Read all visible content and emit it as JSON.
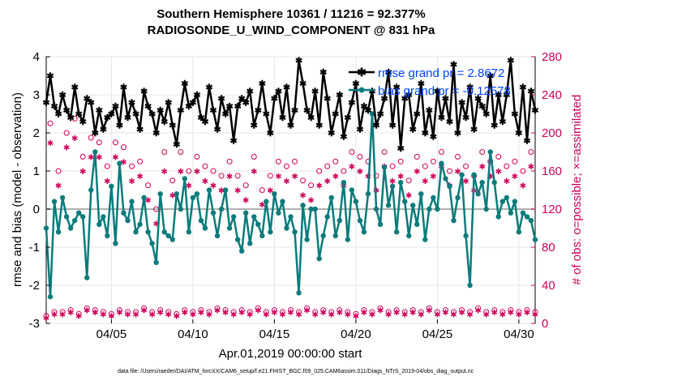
{
  "chart_data": {
    "type": "line",
    "title": "Southern Hemisphere 10361 / 11216 = 92.377%",
    "subtitle": "RADIOSONDE_U_WIND_COMPONENT @ 831 hPa",
    "xlabel": "Apr.01,2019 00:00:00 start",
    "ylabel_left": "rmse and bias (model - observation)",
    "ylabel_right": "# of obs: o=possible; ×=assimilated",
    "footer": "data file: /Users/raeder/DAI/ATM_forcXX/CAM6_setup/f.e21.FHIST_BGC.f09_025.CAM6assim.011/Diags_NTrS_2019-04/obs_diag_output.nc",
    "x_range_days": [
      1,
      31
    ],
    "xticks": [
      5,
      10,
      15,
      20,
      25,
      30
    ],
    "xtick_labels": [
      "04/05",
      "04/10",
      "04/15",
      "04/20",
      "04/25",
      "04/30"
    ],
    "ylim_left": [
      -3,
      4
    ],
    "yticks_left": [
      -3,
      -2,
      -1,
      0,
      1,
      2,
      3,
      4
    ],
    "ylim_right": [
      0,
      280
    ],
    "yticks_right": [
      0,
      40,
      80,
      120,
      160,
      200,
      240,
      280
    ],
    "legend_position": "top-right",
    "colors": {
      "rmse": "#000000",
      "bias": "#0b7b7b",
      "obs": "#d1005a",
      "legend_text": "#0044ff",
      "zero_line": "#b0b0b0",
      "grid": "#e6e6e6"
    },
    "series": [
      {
        "name": "rmse grand pr = 2.8672",
        "axis": "left",
        "style": "line-star",
        "x": [
          1,
          1.25,
          1.5,
          1.75,
          2,
          2.25,
          2.5,
          2.75,
          3,
          3.25,
          3.5,
          3.75,
          4,
          4.25,
          4.5,
          4.75,
          5,
          5.25,
          5.5,
          5.75,
          6,
          6.25,
          6.5,
          6.75,
          7,
          7.25,
          7.5,
          7.75,
          8,
          8.25,
          8.5,
          8.75,
          9,
          9.25,
          9.5,
          9.75,
          10,
          10.25,
          10.5,
          10.75,
          11,
          11.25,
          11.5,
          11.75,
          12,
          12.25,
          12.5,
          12.75,
          13,
          13.25,
          13.5,
          13.75,
          14,
          14.25,
          14.5,
          14.75,
          15,
          15.25,
          15.5,
          15.75,
          16,
          16.25,
          16.5,
          16.75,
          17,
          17.25,
          17.5,
          17.75,
          18,
          18.25,
          18.5,
          18.75,
          19,
          19.25,
          19.5,
          19.75,
          20,
          20.25,
          20.5,
          20.75,
          21,
          21.25,
          21.5,
          21.75,
          22,
          22.25,
          22.5,
          22.75,
          23,
          23.25,
          23.5,
          23.75,
          24,
          24.25,
          24.5,
          24.75,
          25,
          25.25,
          25.5,
          25.75,
          26,
          26.25,
          26.5,
          26.75,
          27,
          27.25,
          27.5,
          27.75,
          28,
          28.25,
          28.5,
          28.75,
          29,
          29.25,
          29.5,
          29.75,
          30,
          30.25,
          30.5,
          30.75,
          31
        ],
        "values": [
          2.8,
          3.5,
          2.7,
          2.5,
          3.0,
          2.6,
          2.4,
          3.2,
          2.5,
          2.3,
          2.9,
          2.8,
          2.0,
          2.6,
          2.1,
          2.4,
          2.5,
          2.7,
          2.2,
          3.2,
          2.4,
          2.8,
          2.5,
          2.1,
          3.1,
          2.7,
          2.5,
          2.0,
          2.6,
          2.3,
          2.8,
          2.2,
          1.7,
          2.6,
          3.3,
          2.7,
          2.8,
          3.0,
          2.4,
          2.3,
          3.2,
          2.6,
          2.1,
          2.9,
          2.5,
          2.7,
          1.8,
          2.7,
          2.9,
          2.8,
          3.1,
          2.2,
          2.6,
          3.3,
          2.5,
          2.0,
          2.9,
          3.1,
          2.4,
          3.2,
          2.2,
          2.6,
          3.9,
          3.3,
          2.6,
          2.4,
          3.1,
          2.2,
          3.6,
          2.9,
          2.0,
          2.5,
          3.0,
          1.9,
          2.4,
          2.8,
          3.3,
          2.1,
          2.7,
          2.6,
          3.1,
          2.2,
          2.5,
          2.9,
          3.6,
          2.2,
          3.2,
          1.6,
          2.9,
          3.0,
          2.1,
          2.5,
          3.3,
          2.0,
          2.6,
          1.9,
          3.1,
          2.4,
          2.9,
          2.3,
          3.8,
          2.0,
          2.8,
          2.4,
          3.2,
          2.1,
          2.9,
          2.7,
          2.5,
          3.5,
          2.2,
          3.0,
          2.3,
          3.0,
          3.9,
          2.5,
          2.0,
          3.2,
          1.8,
          3.1,
          2.6
        ]
      },
      {
        "name": "bias grand pr = -0.12578",
        "axis": "left",
        "style": "line-dot",
        "x": [
          1,
          1.25,
          1.5,
          1.75,
          2,
          2.25,
          2.5,
          2.75,
          3,
          3.25,
          3.5,
          3.75,
          4,
          4.25,
          4.5,
          4.75,
          5,
          5.25,
          5.5,
          5.75,
          6,
          6.25,
          6.5,
          6.75,
          7,
          7.25,
          7.5,
          7.75,
          8,
          8.25,
          8.5,
          8.75,
          9,
          9.25,
          9.5,
          9.75,
          10,
          10.25,
          10.5,
          10.75,
          11,
          11.25,
          11.5,
          11.75,
          12,
          12.25,
          12.5,
          12.75,
          13,
          13.25,
          13.5,
          13.75,
          14,
          14.25,
          14.5,
          14.75,
          15,
          15.25,
          15.5,
          15.75,
          16,
          16.25,
          16.5,
          16.75,
          17,
          17.25,
          17.5,
          17.75,
          18,
          18.25,
          18.5,
          18.75,
          19,
          19.25,
          19.5,
          19.75,
          20,
          20.25,
          20.5,
          20.75,
          21,
          21.25,
          21.5,
          21.75,
          22,
          22.25,
          22.5,
          22.75,
          23,
          23.25,
          23.5,
          23.75,
          24,
          24.25,
          24.5,
          24.75,
          25,
          25.25,
          25.5,
          25.75,
          26,
          26.25,
          26.5,
          26.75,
          27,
          27.25,
          27.5,
          27.75,
          28,
          28.25,
          28.5,
          28.75,
          29,
          29.25,
          29.5,
          29.75,
          30,
          30.25,
          30.5,
          30.75,
          31
        ],
        "values": [
          -0.5,
          -2.3,
          0.2,
          -0.6,
          0.3,
          -0.2,
          -0.5,
          -0.3,
          -0.1,
          -0.2,
          -1.8,
          0.5,
          1.5,
          -0.4,
          -0.2,
          -0.7,
          0.6,
          -0.9,
          1.2,
          -0.1,
          -0.3,
          0.2,
          -0.6,
          -0.4,
          0.3,
          -0.6,
          -0.9,
          -1.4,
          0.4,
          -0.6,
          -0.7,
          -0.8,
          0.4,
          0.0,
          0.8,
          -0.6,
          0.3,
          0.4,
          -0.3,
          -0.5,
          0.5,
          -0.1,
          -0.7,
          0.0,
          0.5,
          -0.5,
          -0.2,
          -0.8,
          -1.1,
          -0.1,
          -0.9,
          -0.2,
          -0.4,
          -0.7,
          0.2,
          -0.6,
          0.4,
          -0.1,
          0.2,
          -0.5,
          -0.2,
          -0.6,
          -2.2,
          0.1,
          -0.8,
          0.0,
          0.0,
          -1.3,
          -0.7,
          -0.2,
          0.3,
          -0.7,
          -0.3,
          0.7,
          -0.8,
          0.5,
          0.2,
          -0.3,
          -0.6,
          0.4,
          2.5,
          0.0,
          -0.4,
          1.1,
          0.1,
          0.6,
          -0.6,
          0.7,
          0.2,
          -0.7,
          0.1,
          -0.4,
          0.4,
          -0.8,
          0.0,
          0.3,
          0.0,
          1.2,
          0.8,
          0.6,
          -0.3,
          0.3,
          0.9,
          -0.7,
          -2.0,
          0.9,
          0.4,
          0.7,
          0.0,
          1.5,
          0.7,
          -0.2,
          0.2,
          0.3,
          -0.1,
          0.2,
          -0.6,
          -0.1,
          -0.2,
          -0.3,
          -0.8
        ]
      },
      {
        "name": "possible obs",
        "axis": "right",
        "style": "circle",
        "x": [
          1,
          1.25,
          1.5,
          1.75,
          2,
          2.25,
          2.5,
          2.75,
          3,
          3.25,
          3.5,
          3.75,
          4,
          4.25,
          4.5,
          4.75,
          5,
          5.25,
          5.5,
          5.75,
          6,
          6.25,
          6.5,
          6.75,
          7,
          7.25,
          7.5,
          7.75,
          8,
          8.25,
          8.5,
          8.75,
          9,
          9.25,
          9.5,
          9.75,
          10,
          10.25,
          10.5,
          10.75,
          11,
          11.25,
          11.5,
          11.75,
          12,
          12.25,
          12.5,
          12.75,
          13,
          13.25,
          13.5,
          13.75,
          14,
          14.25,
          14.5,
          14.75,
          15,
          15.25,
          15.5,
          15.75,
          16,
          16.25,
          16.5,
          16.75,
          17,
          17.25,
          17.5,
          17.75,
          18,
          18.25,
          18.5,
          18.75,
          19,
          19.25,
          19.5,
          19.75,
          20,
          20.25,
          20.5,
          20.75,
          21,
          21.25,
          21.5,
          21.75,
          22,
          22.25,
          22.5,
          22.75,
          23,
          23.25,
          23.5,
          23.75,
          24,
          24.25,
          24.5,
          24.75,
          25,
          25.25,
          25.5,
          25.75,
          26,
          26.25,
          26.5,
          26.75,
          27,
          27.25,
          27.5,
          27.75,
          28,
          28.25,
          28.5,
          28.75,
          29,
          29.25,
          29.5,
          29.75,
          30,
          30.25,
          30.5,
          30.75,
          31
        ],
        "values": [
          8,
          210,
          12,
          160,
          12,
          200,
          14,
          215,
          10,
          175,
          16,
          195,
          14,
          190,
          12,
          165,
          10,
          190,
          14,
          185,
          12,
          165,
          12,
          170,
          16,
          145,
          12,
          120,
          14,
          180,
          12,
          150,
          10,
          180,
          14,
          160,
          12,
          175,
          14,
          165,
          12,
          160,
          16,
          155,
          14,
          170,
          12,
          155,
          14,
          145,
          12,
          175,
          16,
          140,
          12,
          155,
          14,
          170,
          12,
          165,
          14,
          170,
          12,
          150,
          16,
          145,
          12,
          160,
          14,
          165,
          12,
          170,
          14,
          160,
          12,
          180,
          10,
          175,
          14,
          170,
          12,
          155,
          16,
          180,
          12,
          165,
          14,
          170,
          12,
          150,
          14,
          175,
          12,
          165,
          16,
          170,
          12,
          180,
          14,
          160,
          12,
          175,
          14,
          165,
          12,
          155,
          16,
          180,
          12,
          170,
          14,
          175,
          12,
          165,
          14,
          170,
          12,
          160,
          14,
          180,
          12
        ]
      },
      {
        "name": "assimilated obs",
        "axis": "right",
        "style": "asterisk",
        "x": [
          1,
          1.25,
          1.5,
          1.75,
          2,
          2.25,
          2.5,
          2.75,
          3,
          3.25,
          3.5,
          3.75,
          4,
          4.25,
          4.5,
          4.75,
          5,
          5.25,
          5.5,
          5.75,
          6,
          6.25,
          6.5,
          6.75,
          7,
          7.25,
          7.5,
          7.75,
          8,
          8.25,
          8.5,
          8.75,
          9,
          9.25,
          9.5,
          9.75,
          10,
          10.25,
          10.5,
          10.75,
          11,
          11.25,
          11.5,
          11.75,
          12,
          12.25,
          12.5,
          12.75,
          13,
          13.25,
          13.5,
          13.75,
          14,
          14.25,
          14.5,
          14.75,
          15,
          15.25,
          15.5,
          15.75,
          16,
          16.25,
          16.5,
          16.75,
          17,
          17.25,
          17.5,
          17.75,
          18,
          18.25,
          18.5,
          18.75,
          19,
          19.25,
          19.5,
          19.75,
          20,
          20.25,
          20.5,
          20.75,
          21,
          21.25,
          21.5,
          21.75,
          22,
          22.25,
          22.5,
          22.75,
          23,
          23.25,
          23.5,
          23.75,
          24,
          24.25,
          24.5,
          24.75,
          25,
          25.25,
          25.5,
          25.75,
          26,
          26.25,
          26.5,
          26.75,
          27,
          27.25,
          27.5,
          27.75,
          28,
          28.25,
          28.5,
          28.75,
          29,
          29.25,
          29.5,
          29.75,
          30,
          30.25,
          30.5,
          30.75,
          31
        ],
        "values": [
          6,
          190,
          10,
          145,
          10,
          185,
          12,
          195,
          8,
          160,
          14,
          175,
          12,
          175,
          10,
          150,
          8,
          175,
          12,
          170,
          10,
          150,
          10,
          155,
          14,
          130,
          10,
          105,
          12,
          160,
          10,
          135,
          8,
          160,
          12,
          145,
          10,
          160,
          12,
          150,
          10,
          145,
          14,
          140,
          12,
          155,
          10,
          140,
          12,
          130,
          10,
          160,
          14,
          125,
          10,
          140,
          12,
          155,
          10,
          150,
          12,
          155,
          10,
          135,
          14,
          130,
          10,
          145,
          12,
          150,
          10,
          155,
          12,
          145,
          10,
          165,
          8,
          160,
          12,
          155,
          10,
          140,
          14,
          165,
          10,
          150,
          12,
          155,
          10,
          135,
          12,
          160,
          10,
          150,
          14,
          155,
          10,
          165,
          12,
          145,
          10,
          160,
          12,
          150,
          10,
          140,
          14,
          165,
          10,
          155,
          12,
          160,
          10,
          150,
          12,
          155,
          10,
          145,
          12,
          165,
          10
        ]
      }
    ]
  }
}
